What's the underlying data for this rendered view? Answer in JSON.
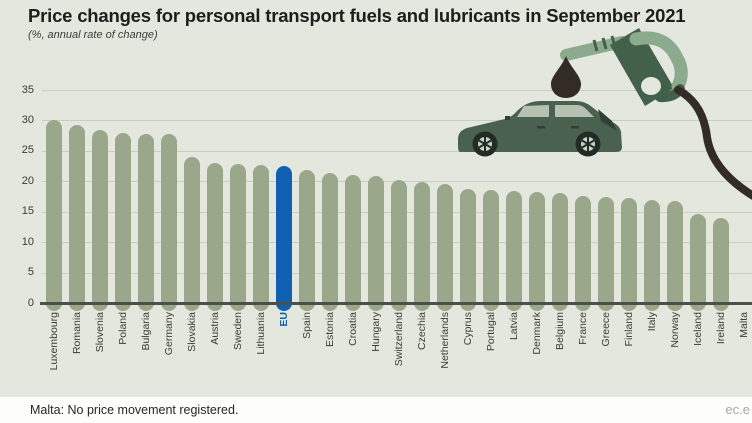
{
  "title": "Price changes for personal transport fuels and lubricants in September 2021",
  "subtitle": "(%, annual rate of change)",
  "footer": {
    "note": "Malta: No price movement registered.",
    "website": "ec.e"
  },
  "colors": {
    "bg": "#e3e7de",
    "bar": "#9aa78b",
    "eu": "#1060b2",
    "grid": "#c9cec3",
    "baseline": "#4c5046",
    "title": "#1d1d1b",
    "subtitle": "#3c3c38",
    "tick": "#3a3a37",
    "label": "#3c3c38",
    "note": "#272724",
    "website": "#a7a8a4",
    "footer_bg": "#fdfdfc",
    "car_body": "#4a6150",
    "car_window": "#b6c1b1",
    "car_glass_dark": "#2f4034",
    "car_wheel": "#222c26",
    "car_hub": "#ccd2c6",
    "pump_light": "#8cab8e",
    "pump_dark": "#43604b",
    "ink": "#332c26"
  },
  "icons": {
    "car": "car-icon",
    "nozzle": "fuel-nozzle-icon",
    "drop": "oil-drop-icon",
    "hose": "fuel-hose-icon"
  },
  "chart_data": {
    "type": "bar",
    "title": "Price changes for personal transport fuels and lubricants in September 2021",
    "subtitle": "(%, annual rate of change)",
    "unit": "%",
    "sort": "descending",
    "grid": true,
    "legend": "none",
    "ylim": [
      0,
      35
    ],
    "yticks": [
      0,
      5,
      10,
      15,
      20,
      25,
      30,
      35
    ],
    "highlight_category": "EU",
    "annotation": "Malta: No price movement registered.",
    "categories": [
      "Luxembourg",
      "Romania",
      "Slovenia",
      "Poland",
      "Bulgaria",
      "Germany",
      "Slovakia",
      "Austria",
      "Sweden",
      "Lithuania",
      "EU",
      "Spain",
      "Estonia",
      "Croatia",
      "Hungary",
      "Switzerland",
      "Czechia",
      "Netherlands",
      "Cyprus",
      "Portugal",
      "Latvia",
      "Denmark",
      "Belgium",
      "France",
      "Greece",
      "Finland",
      "Italy",
      "Norway",
      "Iceland",
      "Ireland",
      "Malta"
    ],
    "values": [
      30.0,
      29.2,
      28.5,
      28.0,
      27.8,
      27.7,
      24.0,
      23.0,
      22.8,
      22.6,
      22.5,
      21.9,
      21.4,
      21.0,
      20.8,
      20.2,
      19.9,
      19.6,
      18.8,
      18.6,
      18.4,
      18.3,
      18.1,
      17.6,
      17.4,
      17.2,
      17.0,
      16.8,
      14.6,
      14.0,
      null
    ]
  }
}
